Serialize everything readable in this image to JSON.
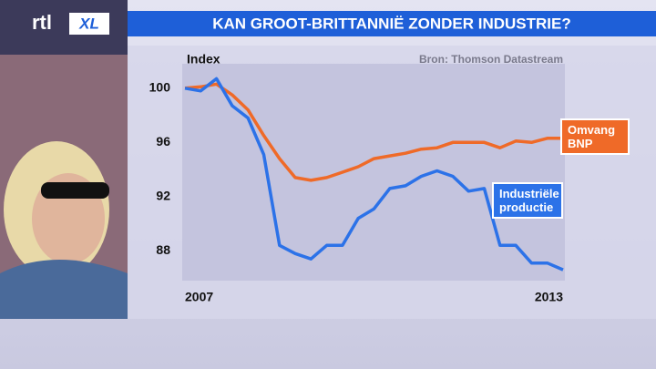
{
  "logo": {
    "text": "rtl",
    "badge": "XL"
  },
  "chart_data": {
    "type": "line",
    "title": "KAN GROOT-BRITTANNIË ZONDER INDUSTRIE?",
    "y_label": "Index",
    "source": "Bron: Thomson Datastream",
    "x": [
      2007,
      2007.25,
      2007.5,
      2007.75,
      2008,
      2008.25,
      2008.5,
      2008.75,
      2009,
      2009.25,
      2009.5,
      2009.75,
      2010,
      2010.25,
      2010.5,
      2010.75,
      2011,
      2011.25,
      2011.5,
      2011.75,
      2012,
      2012.25,
      2012.5,
      2012.75,
      2013
    ],
    "xlim": [
      2007,
      2013
    ],
    "xticks": [
      2007,
      2013
    ],
    "ylim": [
      85.8,
      101.8
    ],
    "yticks": [
      100,
      96,
      92,
      88
    ],
    "grid": false,
    "series": [
      {
        "name": "Omvang BNP",
        "color": "#ef6a28",
        "values": [
          100,
          100.1,
          100.3,
          99.5,
          98.4,
          96.5,
          94.8,
          93.4,
          93.2,
          93.4,
          93.8,
          94.2,
          94.8,
          95.0,
          95.2,
          95.5,
          95.6,
          96.0,
          96.0,
          96.0,
          95.6,
          96.1,
          96.0,
          96.3,
          96.3
        ]
      },
      {
        "name": "Industriële productie",
        "color": "#2c72e8",
        "values": [
          100,
          99.8,
          100.7,
          98.7,
          97.8,
          95.1,
          88.4,
          87.8,
          87.4,
          88.4,
          88.4,
          90.4,
          91.1,
          92.6,
          92.8,
          93.5,
          93.9,
          93.5,
          92.4,
          92.6,
          88.4,
          88.4,
          87.1,
          87.1,
          86.6
        ]
      }
    ]
  }
}
